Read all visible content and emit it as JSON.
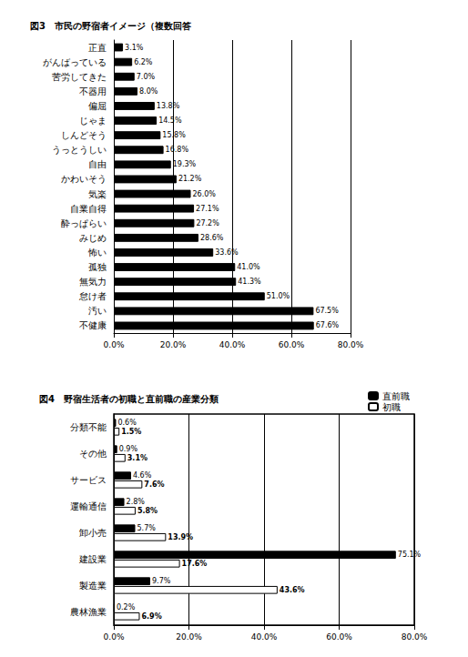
{
  "chart_data": [
    {
      "type": "bar",
      "title": "図3　市民の野宿者イメージ（複数回答",
      "orientation": "horizontal",
      "grid": true,
      "data_labels": true,
      "color": "#000000",
      "categories": [
        "正直",
        "がんばっている",
        "苦労してきた",
        "不器用",
        "偏屈",
        "じゃま",
        "しんどそう",
        "うっとうしい",
        "自由",
        "かわいそう",
        "気楽",
        "自業自得",
        "酔っぱらい",
        "みじめ",
        "怖い",
        "孤独",
        "無気力",
        "怠け者",
        "汚い",
        "不健康"
      ],
      "values": [
        3.1,
        6.2,
        7.0,
        8.0,
        13.8,
        14.5,
        15.8,
        16.8,
        19.3,
        21.2,
        26.0,
        27.1,
        27.2,
        28.6,
        33.6,
        41.0,
        41.3,
        51.0,
        67.5,
        67.6
      ],
      "value_labels": [
        "3.1%",
        "6.2%",
        "7.0%",
        "8.0%",
        "13.8%",
        "14.5%",
        "15.8%",
        "16.8%",
        "19.3%",
        "21.2%",
        "26.0%",
        "27.1%",
        "27.2%",
        "28.6%",
        "33.6%",
        "41.0%",
        "41.3%",
        "51.0%",
        "67.5%",
        "67.6%"
      ],
      "xlim": [
        0,
        80
      ],
      "xticks": [
        {
          "value": 0,
          "label": "0.0%"
        },
        {
          "value": 20,
          "label": "20.0%"
        },
        {
          "value": 40,
          "label": "40.0%"
        },
        {
          "value": 60,
          "label": "60.0%"
        },
        {
          "value": 80,
          "label": "80.0%"
        }
      ]
    },
    {
      "type": "bar",
      "title": "図4　野宿生活者の初職と直前職の産業分類",
      "orientation": "horizontal",
      "grid": true,
      "data_labels": true,
      "legend": "top-right",
      "categories": [
        "分類不能",
        "その他",
        "サービス",
        "運輸通信",
        "卸小売",
        "建設業",
        "製造業",
        "農林漁業"
      ],
      "series": [
        {
          "name": "直前職",
          "color": "#000000",
          "values": [
            0.6,
            0.9,
            4.6,
            2.8,
            5.7,
            75.1,
            9.7,
            0.2
          ],
          "value_labels": [
            "0.6%",
            "0.9%",
            "4.6%",
            "2.8%",
            "5.7%",
            "75.1%",
            "9.7%",
            "0.2%"
          ]
        },
        {
          "name": "初職",
          "color": "#ffffff",
          "values": [
            1.5,
            3.1,
            7.6,
            5.8,
            13.9,
            17.6,
            43.6,
            6.9
          ],
          "value_labels": [
            "1.5%",
            "3.1%",
            "7.6%",
            "5.8%",
            "13.9%",
            "17.6%",
            "43.6%",
            "6.9%"
          ]
        }
      ],
      "xlim": [
        0,
        80
      ],
      "xticks": [
        {
          "value": 0,
          "label": "0.0%"
        },
        {
          "value": 20,
          "label": "20.0%"
        },
        {
          "value": 40,
          "label": "40.0%"
        },
        {
          "value": 60,
          "label": "60.0%"
        },
        {
          "value": 80,
          "label": "80.0%"
        }
      ]
    }
  ]
}
